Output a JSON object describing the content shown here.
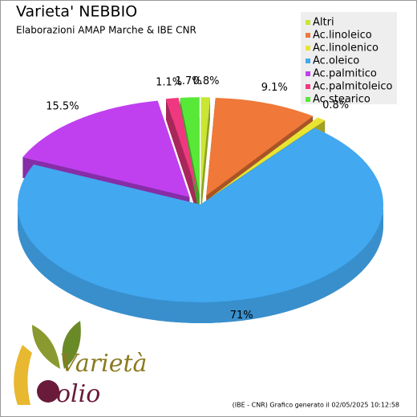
{
  "chart_data": {
    "type": "pie3d",
    "title": "Varieta' NEBBIO",
    "subtitle": "Elaborazioni AMAP Marche & IBE CNR",
    "categories": [
      "Altri",
      "Ac.linoleico",
      "Ac.linolenico",
      "Ac.oleico",
      "Ac.palmitico",
      "Ac.palmitoleico",
      "Ac.stearico"
    ],
    "values": [
      0.8,
      9.1,
      0.8,
      71,
      15.5,
      1.1,
      1.7
    ],
    "value_labels": [
      "0.8%",
      "9.1%",
      "0.8%",
      "71%",
      "15.5%",
      "1.1%",
      "1.7%"
    ],
    "colors": [
      "#c8e632",
      "#f07838",
      "#e8e432",
      "#42a8f0",
      "#c040f0",
      "#f03880",
      "#58e838"
    ],
    "legend": "top-right"
  },
  "footer": "(IBE - CNR) Grafico generato il 02/05/2025 10:12:58",
  "logo": {
    "word1": "Varietà",
    "word2": "olio"
  }
}
